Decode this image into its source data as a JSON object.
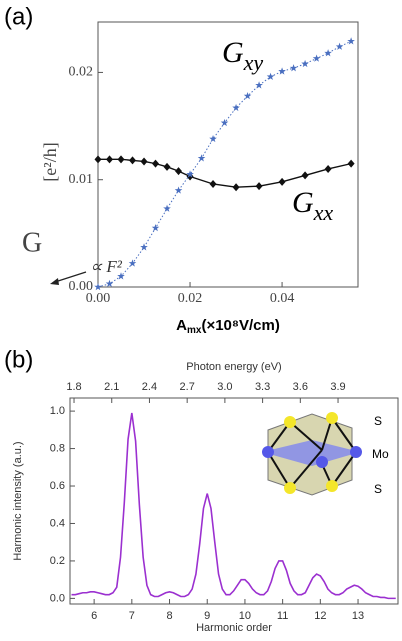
{
  "chart_data": [
    {
      "type": "line",
      "panel_label": "(a)",
      "xlabel": {
        "main": "A",
        "sub": "mx",
        "rest": "(×10⁸V/cm)"
      },
      "ylabel": {
        "symbol": "G",
        "unit": "[e²/h]"
      },
      "annotations": [
        {
          "text": "G",
          "sub": "xy"
        },
        {
          "text": "G",
          "sub": "xx"
        },
        {
          "text": "∝ F²"
        }
      ],
      "xlim": [
        0,
        0.0565
      ],
      "ylim": [
        0,
        0.0247
      ],
      "xticks": [
        {
          "value": 0,
          "label": "0.00"
        },
        {
          "value": 0.02,
          "label": "0.02"
        },
        {
          "value": 0.04,
          "label": "0.04"
        }
      ],
      "yticks": [
        {
          "value": 0,
          "label": "0.00"
        },
        {
          "value": 0.01,
          "label": "0.01"
        },
        {
          "value": 0.02,
          "label": "0.02"
        }
      ],
      "series": [
        {
          "color": "#111111",
          "marker": "diamond",
          "linestyle": "solid",
          "x": [
            0,
            0.0025,
            0.005,
            0.0075,
            0.01,
            0.0125,
            0.015,
            0.0175,
            0.02,
            0.025,
            0.03,
            0.035,
            0.04,
            0.045,
            0.05,
            0.055
          ],
          "values": [
            0.0119,
            0.0119,
            0.0119,
            0.0118,
            0.0117,
            0.0115,
            0.0112,
            0.0108,
            0.0103,
            0.0096,
            0.0093,
            0.0094,
            0.0098,
            0.0104,
            0.011,
            0.0115
          ]
        },
        {
          "color": "#4a6fc0",
          "marker": "star",
          "linestyle": "dotted",
          "x": [
            0,
            0.0025,
            0.005,
            0.0075,
            0.01,
            0.0125,
            0.015,
            0.0175,
            0.02,
            0.0225,
            0.025,
            0.0275,
            0.03,
            0.0325,
            0.035,
            0.0375,
            0.04,
            0.0425,
            0.045,
            0.0475,
            0.05,
            0.0525,
            0.055
          ],
          "values": [
            0,
            0.0003,
            0.001,
            0.0022,
            0.0037,
            0.0055,
            0.0073,
            0.009,
            0.0105,
            0.012,
            0.0138,
            0.0153,
            0.0167,
            0.0178,
            0.0188,
            0.0196,
            0.0201,
            0.0204,
            0.0208,
            0.0213,
            0.0218,
            0.0224,
            0.0229
          ]
        }
      ]
    },
    {
      "type": "line",
      "panel_label": "(b)",
      "xlabel": "Harmonic order",
      "ylabel": "Harmonic intensity (a.u.)",
      "x2label": "Photon energy (eV)",
      "annotations": [
        {
          "text": "S"
        },
        {
          "text": "Mo"
        },
        {
          "text": "S"
        }
      ],
      "xlim": [
        5.36,
        14.06
      ],
      "ylim": [
        -0.03,
        1.07
      ],
      "x2lim": [
        1.768,
        4.377
      ],
      "xticks": [
        6,
        7,
        8,
        9,
        10,
        11,
        12,
        13
      ],
      "x2ticks": [
        1.8,
        2.1,
        2.4,
        2.7,
        {
          "value": 3,
          "label": "3.0"
        },
        3.3,
        3.6,
        3.9
      ],
      "yticks": [
        {
          "value": 0,
          "label": "0.0"
        },
        0.2,
        0.4,
        0.6,
        0.8,
        {
          "value": 1,
          "label": "1.0"
        }
      ],
      "series": [
        {
          "color": "#9b30d0",
          "linestyle": "solid",
          "x": [
            5.4,
            5.5,
            5.6,
            5.7,
            5.8,
            5.9,
            6.0,
            6.1,
            6.2,
            6.3,
            6.4,
            6.5,
            6.6,
            6.7,
            6.8,
            6.9,
            7.0,
            7.1,
            7.2,
            7.3,
            7.4,
            7.5,
            7.6,
            7.7,
            7.8,
            7.9,
            8.0,
            8.1,
            8.2,
            8.3,
            8.4,
            8.5,
            8.6,
            8.7,
            8.8,
            8.9,
            9.0,
            9.1,
            9.2,
            9.3,
            9.4,
            9.5,
            9.6,
            9.7,
            9.8,
            9.9,
            10.0,
            10.1,
            10.2,
            10.3,
            10.4,
            10.5,
            10.6,
            10.7,
            10.8,
            10.9,
            11.0,
            11.1,
            11.2,
            11.3,
            11.4,
            11.5,
            11.6,
            11.7,
            11.8,
            11.9,
            12.0,
            12.1,
            12.2,
            12.3,
            12.4,
            12.5,
            12.6,
            12.7,
            12.8,
            12.9,
            13.0,
            13.1,
            13.2,
            13.3,
            13.4,
            13.5,
            13.6,
            13.7,
            13.8,
            13.9,
            14.0
          ],
          "values": [
            0.02,
            0.02,
            0.025,
            0.03,
            0.03,
            0.035,
            0.035,
            0.03,
            0.025,
            0.02,
            0.02,
            0.03,
            0.06,
            0.22,
            0.51,
            0.85,
            0.99,
            0.84,
            0.5,
            0.22,
            0.07,
            0.02,
            0.01,
            0.01,
            0.02,
            0.03,
            0.035,
            0.03,
            0.02,
            0.01,
            0.01,
            0.02,
            0.05,
            0.13,
            0.29,
            0.48,
            0.56,
            0.48,
            0.3,
            0.13,
            0.05,
            0.02,
            0.02,
            0.04,
            0.07,
            0.1,
            0.1,
            0.08,
            0.05,
            0.03,
            0.02,
            0.02,
            0.04,
            0.09,
            0.16,
            0.2,
            0.2,
            0.15,
            0.08,
            0.04,
            0.02,
            0.02,
            0.03,
            0.07,
            0.11,
            0.13,
            0.12,
            0.09,
            0.05,
            0.03,
            0.02,
            0.02,
            0.03,
            0.05,
            0.06,
            0.07,
            0.065,
            0.05,
            0.03,
            0.02,
            0.01,
            0.01,
            0.005,
            0.005,
            0,
            0,
            0
          ]
        }
      ]
    }
  ]
}
